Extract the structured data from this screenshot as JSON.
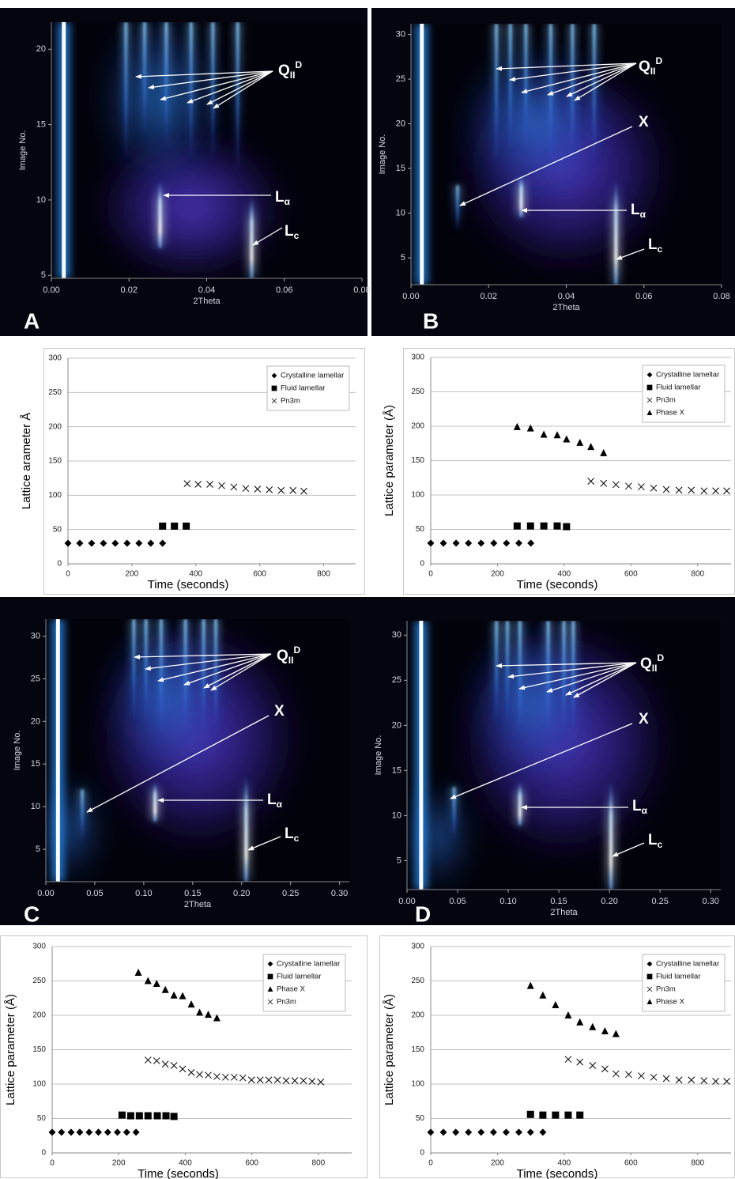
{
  "chart_data": [
    {
      "type": "heatmap",
      "panel_label": "A",
      "xlabel": "2Theta",
      "ylabel": "Image No.",
      "xlim": [
        0,
        0.08
      ],
      "xticks": [
        {
          "value": 0,
          "label": "0.00"
        },
        0.02,
        0.04,
        0.06,
        0.08
      ],
      "ylim": [
        4.8,
        21.8
      ],
      "yticks": [
        5,
        10,
        15,
        20
      ],
      "annotations": [
        {
          "text": "Q",
          "sub": "II",
          "sup": "D"
        },
        {
          "text": "L",
          "sub": "α"
        },
        {
          "text": "L",
          "sub": "c"
        }
      ]
    },
    {
      "type": "heatmap",
      "panel_label": "B",
      "xlabel": "2Theta",
      "ylabel": "Image No.",
      "xlim": [
        0,
        0.08
      ],
      "xticks": [
        {
          "value": 0,
          "label": "0.00"
        },
        0.02,
        0.04,
        0.06,
        0.08
      ],
      "ylim": [
        2,
        31.2
      ],
      "yticks": [
        5,
        10,
        15,
        20,
        25,
        30
      ],
      "annotations": [
        {
          "text": "Q",
          "sub": "II",
          "sup": "D"
        },
        {
          "text": "X"
        },
        {
          "text": "L",
          "sub": "α"
        },
        {
          "text": "L",
          "sub": "c"
        }
      ]
    },
    {
      "type": "scatter",
      "xlabel": "Time (seconds)",
      "ylabel": "Lattice arameter Å",
      "xlim": [
        0,
        900
      ],
      "xticks": [
        0,
        200,
        400,
        600,
        800
      ],
      "ylim": [
        0,
        300
      ],
      "yticks": [
        0,
        50,
        100,
        150,
        200,
        250,
        300
      ],
      "grid": true,
      "legend": "upper right",
      "series": [
        {
          "name": "Crystalline lamellar",
          "marker": "diamond",
          "color": "#000000",
          "x": [
            0,
            37,
            74,
            111,
            148,
            185,
            222,
            259,
            296
          ],
          "values": [
            30,
            30,
            30,
            30,
            30,
            30,
            30,
            30,
            30
          ]
        },
        {
          "name": "Fluid lamellar",
          "marker": "square",
          "color": "#000000",
          "x": [
            296,
            333,
            370
          ],
          "values": [
            55,
            55,
            55
          ]
        },
        {
          "name": "Pn3m",
          "marker": "x",
          "color": "#000000",
          "x": [
            373,
            407,
            444,
            481,
            519,
            556,
            593,
            630,
            667,
            704,
            738
          ],
          "values": [
            117,
            116,
            116,
            114,
            112,
            110,
            109,
            108,
            107,
            107,
            106
          ]
        }
      ]
    },
    {
      "type": "scatter",
      "xlabel": "Time (seconds)",
      "ylabel": "Lattice parameter (Å)",
      "xlim": [
        0,
        900
      ],
      "xticks": [
        0,
        200,
        400,
        600,
        800
      ],
      "ylim": [
        0,
        300
      ],
      "yticks": [
        0,
        50,
        100,
        150,
        200,
        250,
        300
      ],
      "grid": true,
      "legend": "upper right",
      "series": [
        {
          "name": "Crystalline lamellar",
          "marker": "diamond",
          "color": "#000000",
          "x": [
            0,
            38,
            76,
            113,
            151,
            189,
            227,
            264,
            300
          ],
          "values": [
            30,
            30,
            30,
            30,
            30,
            30,
            30,
            30,
            30
          ]
        },
        {
          "name": "Fluid lamellar",
          "marker": "square",
          "color": "#000000",
          "x": [
            259,
            299,
            339,
            379,
            407
          ],
          "values": [
            55,
            55,
            55,
            55,
            54
          ]
        },
        {
          "name": "Pn3m",
          "marker": "x",
          "color": "#000000",
          "x": [
            480,
            518,
            555,
            593,
            631,
            668,
            706,
            744,
            781,
            819,
            854,
            887
          ],
          "values": [
            120,
            117,
            115,
            113,
            112,
            110,
            108,
            107,
            107,
            106,
            106,
            106
          ]
        },
        {
          "name": "Phase X",
          "marker": "triangle",
          "color": "#000000",
          "x": [
            259,
            299,
            339,
            379,
            407,
            447,
            480,
            518
          ],
          "values": [
            199,
            197,
            188,
            187,
            181,
            176,
            170,
            161
          ]
        }
      ]
    },
    {
      "type": "heatmap",
      "panel_label": "C",
      "xlabel": "2Theta",
      "ylabel": "Image No.",
      "xlim": [
        0,
        0.31
      ],
      "xticks": [
        {
          "value": 0,
          "label": "0.00"
        },
        0.05,
        {
          "value": 0.1,
          "label": "0.10"
        },
        0.15,
        {
          "value": 0.2,
          "label": "0.20"
        },
        0.25,
        {
          "value": 0.3,
          "label": "0.30"
        }
      ],
      "ylim": [
        1.2,
        32
      ],
      "yticks": [
        5,
        10,
        15,
        20,
        25,
        30
      ],
      "annotations": [
        {
          "text": "Q",
          "sub": "II",
          "sup": "D"
        },
        {
          "text": "X"
        },
        {
          "text": "L",
          "sub": "α"
        },
        {
          "text": "L",
          "sub": "c"
        }
      ]
    },
    {
      "type": "heatmap",
      "panel_label": "D",
      "xlabel": "2Theta",
      "ylabel": "Image No.",
      "xlim": [
        0,
        0.31
      ],
      "xticks": [
        {
          "value": 0,
          "label": "0.00"
        },
        0.05,
        {
          "value": 0.1,
          "label": "0.10"
        },
        0.15,
        {
          "value": 0.2,
          "label": "0.20"
        },
        0.25,
        {
          "value": 0.3,
          "label": "0.30"
        }
      ],
      "ylim": [
        1.8,
        31.6
      ],
      "yticks": [
        5,
        10,
        15,
        20,
        25,
        30
      ],
      "annotations": [
        {
          "text": "Q",
          "sub": "II",
          "sup": "D"
        },
        {
          "text": "X"
        },
        {
          "text": "L",
          "sub": "α"
        },
        {
          "text": "L",
          "sub": "c"
        }
      ]
    },
    {
      "type": "scatter",
      "xlabel": "Time (seconds)",
      "ylabel": "Lattice parameter (Å)",
      "xlim": [
        0,
        900
      ],
      "xticks": [
        0,
        200,
        400,
        600,
        800
      ],
      "ylim": [
        0,
        300
      ],
      "yticks": [
        0,
        50,
        100,
        150,
        200,
        250,
        300
      ],
      "grid": true,
      "legend": "upper right",
      "series": [
        {
          "name": "Crystalline lamellar",
          "marker": "diamond",
          "color": "#000000",
          "x": [
            0,
            28,
            57,
            83,
            111,
            139,
            167,
            196,
            224,
            252
          ],
          "values": [
            30,
            30,
            30,
            30,
            30,
            30,
            30,
            30,
            30,
            30
          ]
        },
        {
          "name": "Fluid lamellar",
          "marker": "square",
          "color": "#000000",
          "x": [
            210,
            236,
            262,
            288,
            316,
            342,
            366
          ],
          "values": [
            55,
            54,
            54,
            54,
            54,
            54,
            53
          ]
        },
        {
          "name": "Phase X",
          "marker": "triangle",
          "color": "#000000",
          "x": [
            259,
            288,
            314,
            340,
            366,
            392,
            418,
            443,
            469,
            495
          ],
          "values": [
            262,
            250,
            246,
            237,
            229,
            228,
            216,
            204,
            201,
            196
          ]
        },
        {
          "name": "Pn3m",
          "marker": "x",
          "color": "#000000",
          "x": [
            288,
            314,
            340,
            366,
            392,
            418,
            443,
            469,
            495,
            521,
            547,
            573,
            599,
            625,
            651,
            677,
            703,
            729,
            755,
            781,
            807
          ],
          "values": [
            135,
            134,
            129,
            127,
            122,
            117,
            114,
            113,
            111,
            110,
            110,
            109,
            106,
            106,
            106,
            106,
            105,
            105,
            105,
            104,
            103
          ]
        }
      ]
    },
    {
      "type": "scatter",
      "xlabel": "Time (seconds)",
      "ylabel": "Lattice parameter (Å)",
      "xlim": [
        0,
        900
      ],
      "xticks": [
        0,
        200,
        400,
        600,
        800
      ],
      "ylim": [
        0,
        300
      ],
      "yticks": [
        0,
        50,
        100,
        150,
        200,
        250,
        300
      ],
      "grid": true,
      "legend": "upper right",
      "series": [
        {
          "name": "Crystalline lamellar",
          "marker": "diamond",
          "color": "#000000",
          "x": [
            0,
            38,
            75,
            113,
            151,
            188,
            226,
            264,
            299,
            336
          ],
          "values": [
            30,
            30,
            30,
            30,
            30,
            30,
            30,
            30,
            30,
            30
          ]
        },
        {
          "name": "Fluid lamellar",
          "marker": "square",
          "color": "#000000",
          "x": [
            299,
            336,
            374,
            412,
            447
          ],
          "values": [
            56,
            55,
            55,
            55,
            55
          ]
        },
        {
          "name": "Pn3m",
          "marker": "x",
          "color": "#000000",
          "x": [
            412,
            447,
            485,
            522,
            555,
            593,
            631,
            668,
            706,
            744,
            781,
            819,
            854,
            887
          ],
          "values": [
            136,
            132,
            127,
            122,
            115,
            114,
            112,
            110,
            108,
            106,
            106,
            105,
            104,
            104
          ]
        },
        {
          "name": "Phase X",
          "marker": "triangle",
          "color": "#000000",
          "x": [
            299,
            336,
            374,
            412,
            447,
            485,
            522,
            555
          ],
          "values": [
            243,
            229,
            215,
            200,
            190,
            183,
            177,
            173
          ]
        }
      ]
    }
  ]
}
